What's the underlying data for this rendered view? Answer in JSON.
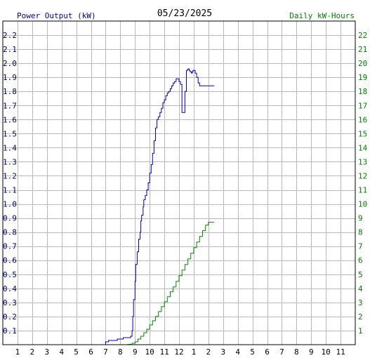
{
  "chart_data": {
    "type": "line",
    "title": "05/23/2025",
    "left_axis_label": "Power Output (kW)",
    "right_axis_label": "Daily kW-Hours",
    "left_ticks": [
      "0.1",
      "0.2",
      "0.3",
      "0.4",
      "0.5",
      "0.6",
      "0.7",
      "0.8",
      "0.9",
      "1.0",
      "1.1",
      "1.2",
      "1.3",
      "1.4",
      "1.5",
      "1.6",
      "1.7",
      "1.8",
      "1.9",
      "2.0",
      "2.1",
      "2.2"
    ],
    "right_ticks": [
      "1",
      "2",
      "3",
      "4",
      "5",
      "6",
      "7",
      "8",
      "9",
      "10",
      "11",
      "12",
      "13",
      "14",
      "15",
      "16",
      "17",
      "18",
      "19",
      "20",
      "21",
      "22"
    ],
    "x_ticks": [
      "1",
      "2",
      "3",
      "4",
      "5",
      "6",
      "7",
      "8",
      "9",
      "10",
      "11",
      "12",
      "1",
      "2",
      "3",
      "4",
      "5",
      "6",
      "7",
      "8",
      "9",
      "10",
      "11"
    ],
    "xlim": [
      0,
      24
    ],
    "ylim_left": [
      0,
      2.3
    ],
    "ylim_right": [
      0,
      23
    ],
    "grid": true,
    "colors": {
      "power": "#0000b8",
      "energy": "#008800",
      "grid": "#b8b8b8",
      "left_axis_text": "#000080",
      "right_axis_text": "#008000"
    },
    "series": [
      {
        "axis": "left",
        "color": "#0000b8",
        "x": [
          6.7,
          7.0,
          7.2,
          7.5,
          7.8,
          8.0,
          8.2,
          8.5,
          8.7,
          8.8,
          8.85,
          8.9,
          8.95,
          9.0,
          9.05,
          9.1,
          9.15,
          9.2,
          9.25,
          9.3,
          9.35,
          9.4,
          9.45,
          9.5,
          9.55,
          9.6,
          9.7,
          9.8,
          9.9,
          10.0,
          10.1,
          10.2,
          10.3,
          10.4,
          10.5,
          10.6,
          10.7,
          10.8,
          10.9,
          11.0,
          11.1,
          11.2,
          11.3,
          11.4,
          11.5,
          11.6,
          11.7,
          11.8,
          11.9,
          12.0,
          12.1,
          12.2,
          12.3,
          12.4,
          12.5,
          12.6,
          12.7,
          12.75,
          12.8,
          12.85,
          12.9,
          12.95,
          13.0,
          13.1,
          13.2,
          13.3,
          13.4,
          13.5,
          13.6,
          13.7,
          13.8,
          13.9,
          14.0,
          14.1,
          14.2,
          14.3,
          14.4
        ],
        "y": [
          0.0,
          0.02,
          0.03,
          0.03,
          0.04,
          0.04,
          0.05,
          0.05,
          0.06,
          0.1,
          0.2,
          0.32,
          0.32,
          0.45,
          0.57,
          0.57,
          0.66,
          0.66,
          0.75,
          0.75,
          0.8,
          0.88,
          0.92,
          0.92,
          0.98,
          1.03,
          1.06,
          1.1,
          1.15,
          1.22,
          1.28,
          1.36,
          1.45,
          1.54,
          1.6,
          1.62,
          1.65,
          1.68,
          1.72,
          1.74,
          1.77,
          1.79,
          1.8,
          1.82,
          1.84,
          1.86,
          1.87,
          1.89,
          1.89,
          1.87,
          1.85,
          1.65,
          1.65,
          1.8,
          1.95,
          1.96,
          1.95,
          1.94,
          1.94,
          1.93,
          1.94,
          1.95,
          1.95,
          1.93,
          1.9,
          1.86,
          1.84,
          1.84,
          1.84,
          1.84,
          1.84,
          1.84,
          1.84,
          1.84,
          1.84,
          1.84,
          1.84
        ]
      },
      {
        "axis": "right",
        "color": "#008800",
        "x": [
          7.2,
          8.5,
          8.8,
          9.0,
          9.2,
          9.4,
          9.6,
          9.8,
          10.0,
          10.2,
          10.4,
          10.6,
          10.8,
          11.0,
          11.2,
          11.4,
          11.6,
          11.8,
          12.0,
          12.2,
          12.4,
          12.6,
          12.8,
          13.0,
          13.2,
          13.4,
          13.6,
          13.8,
          14.0,
          14.2,
          14.4
        ],
        "y": [
          0.0,
          0.02,
          0.1,
          0.2,
          0.4,
          0.6,
          0.85,
          1.1,
          1.4,
          1.7,
          2.0,
          2.35,
          2.7,
          3.05,
          3.4,
          3.75,
          4.1,
          4.5,
          4.9,
          5.3,
          5.7,
          6.1,
          6.5,
          6.9,
          7.3,
          7.7,
          8.1,
          8.5,
          8.7,
          8.7,
          8.7
        ]
      }
    ]
  }
}
